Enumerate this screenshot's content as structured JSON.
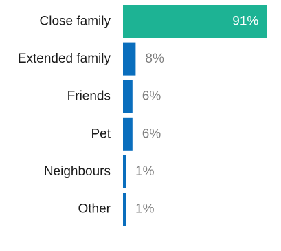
{
  "chart_data": {
    "type": "bar",
    "orientation": "horizontal",
    "categories": [
      "Close family",
      "Extended family",
      "Friends",
      "Pet",
      "Neighbours",
      "Other"
    ],
    "values": [
      91,
      8,
      6,
      6,
      1,
      1
    ],
    "value_labels": [
      "91%",
      "8%",
      "6%",
      "6%",
      "1%",
      "1%"
    ],
    "unit": "%",
    "xlim": [
      0,
      100
    ],
    "grid": false,
    "legend": "none",
    "highlight_index": 0,
    "colors": {
      "highlight_bar": "#1db394",
      "bar": "#0a6ebd",
      "label_inside": "#ffffff",
      "label_outside": "#808080",
      "category_text": "#1a1a1a"
    }
  }
}
